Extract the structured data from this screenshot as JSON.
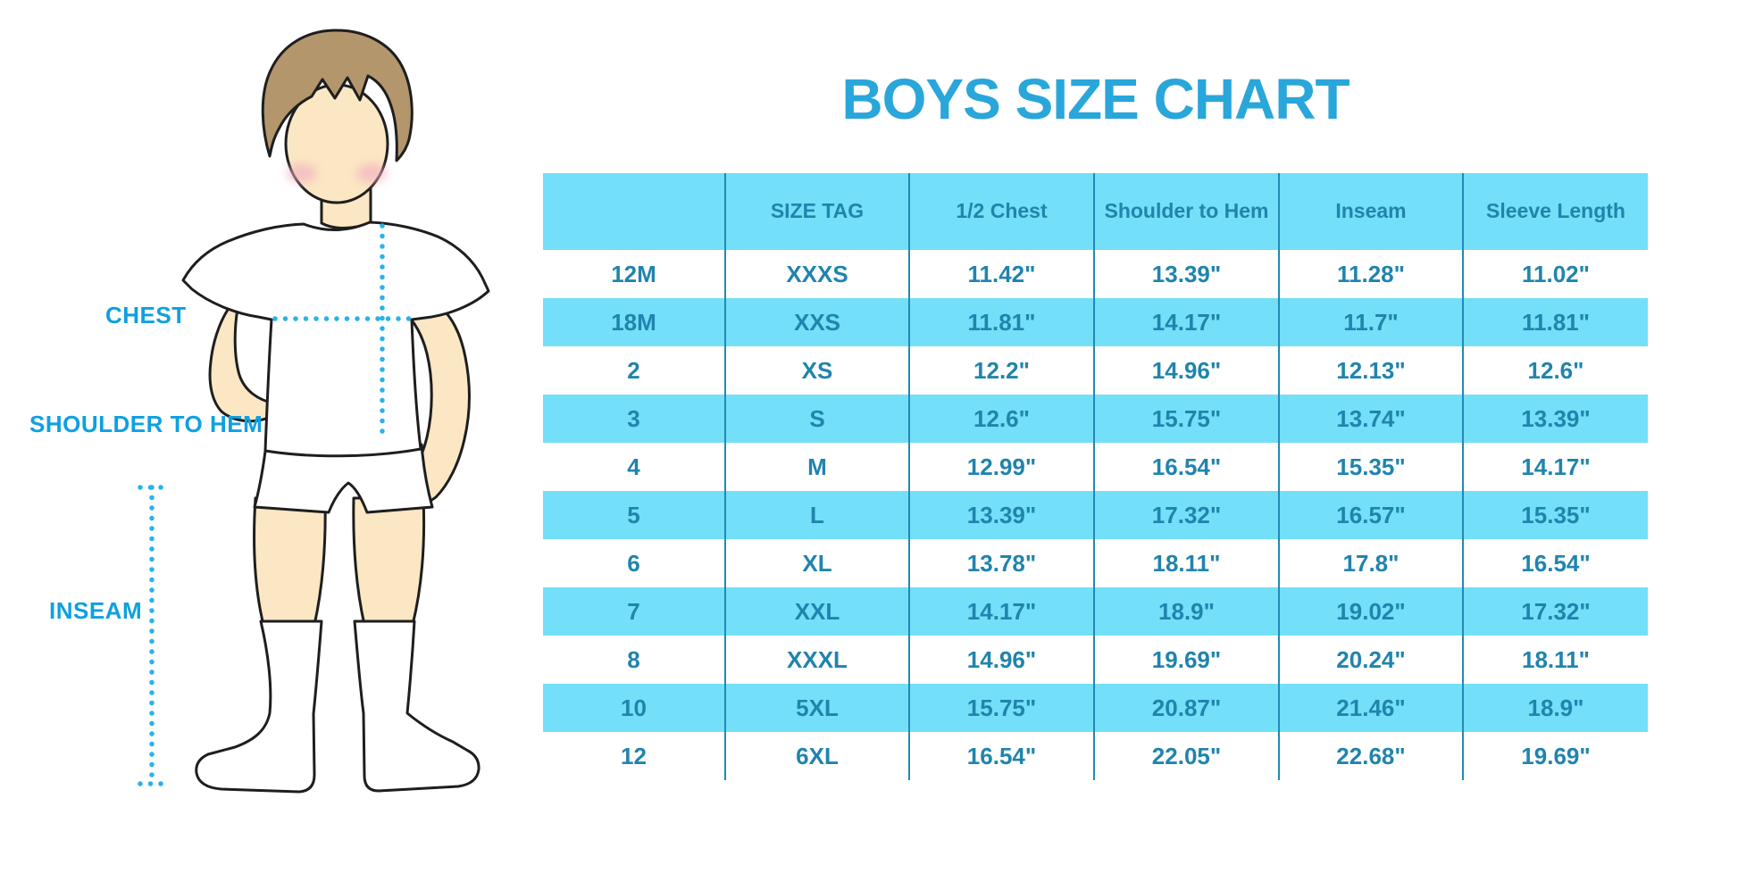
{
  "title": "BOYS SIZE CHART",
  "figure_labels": {
    "chest": "CHEST",
    "shoulder_to_hem": "SHOULDER TO HEM",
    "inseam": "INSEAM"
  },
  "colors": {
    "accent-blue": "#29A6DA",
    "label-blue": "#0FA0E0",
    "dot-blue": "#29B2EA",
    "table-bg": "#73DFF8",
    "table-ink": "#2084AD",
    "table-line": "#2389B2",
    "skin": "#FBE7C3",
    "hair": "#B4966C",
    "blush": "#F2AFC1",
    "outline": "#1E1E1E"
  },
  "chart_data": {
    "type": "table",
    "title": "BOYS SIZE CHART",
    "columns": [
      "",
      "SIZE TAG",
      "1/2 Chest",
      "Shoulder to Hem",
      "Inseam",
      "Sleeve Length"
    ],
    "rows": [
      [
        "12M",
        "XXXS",
        "11.42\"",
        "13.39\"",
        "11.28\"",
        "11.02\""
      ],
      [
        "18M",
        "XXS",
        "11.81\"",
        "14.17\"",
        "11.7\"",
        "11.81\""
      ],
      [
        "2",
        "XS",
        "12.2\"",
        "14.96\"",
        "12.13\"",
        "12.6\""
      ],
      [
        "3",
        "S",
        "12.6\"",
        "15.75\"",
        "13.74\"",
        "13.39\""
      ],
      [
        "4",
        "M",
        "12.99\"",
        "16.54\"",
        "15.35\"",
        "14.17\""
      ],
      [
        "5",
        "L",
        "13.39\"",
        "17.32\"",
        "16.57\"",
        "15.35\""
      ],
      [
        "6",
        "XL",
        "13.78\"",
        "18.11\"",
        "17.8\"",
        "16.54\""
      ],
      [
        "7",
        "XXL",
        "14.17\"",
        "18.9\"",
        "19.02\"",
        "17.32\""
      ],
      [
        "8",
        "XXXL",
        "14.96\"",
        "19.69\"",
        "20.24\"",
        "18.11\""
      ],
      [
        "10",
        "5XL",
        "15.75\"",
        "20.87\"",
        "21.46\"",
        "18.9\""
      ],
      [
        "12",
        "6XL",
        "16.54\"",
        "22.05\"",
        "22.68\"",
        "19.69\""
      ]
    ]
  }
}
